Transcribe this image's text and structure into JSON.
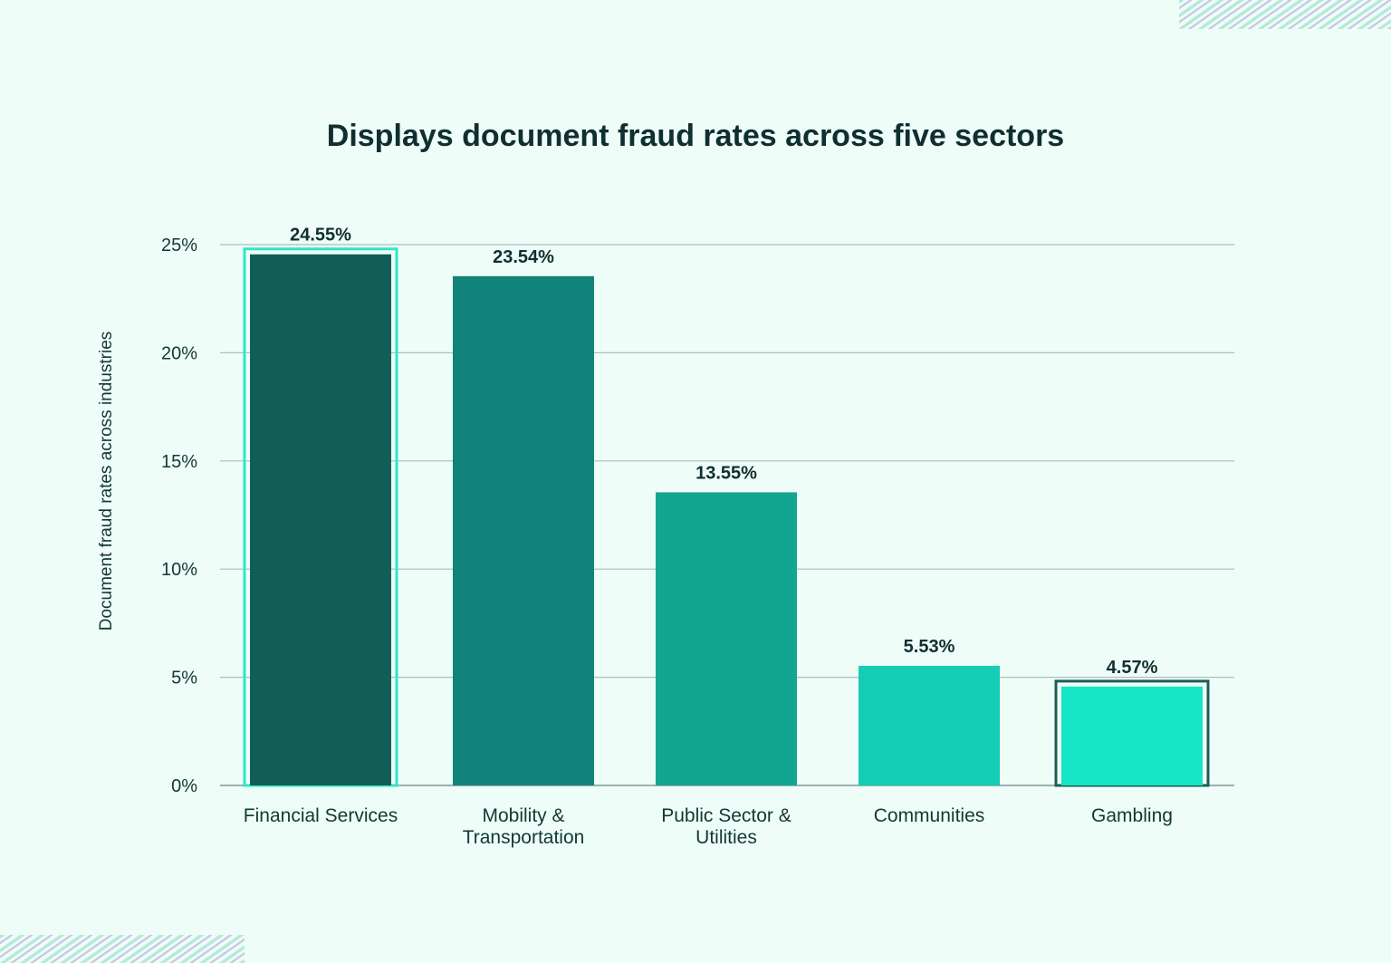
{
  "chart_data": {
    "type": "bar",
    "title": "Displays document fraud rates across five sectors",
    "ylabel": "Document fraud rates across industries",
    "xlabel": "",
    "ylim": [
      0,
      25
    ],
    "yticks": [
      {
        "value": 0,
        "label": "0%"
      },
      {
        "value": 5,
        "label": "5%"
      },
      {
        "value": 10,
        "label": "10%"
      },
      {
        "value": 15,
        "label": "15%"
      },
      {
        "value": 20,
        "label": "20%"
      },
      {
        "value": 25,
        "label": "25%"
      }
    ],
    "grid": true,
    "categories": [
      [
        "Financial Services"
      ],
      [
        "Mobility &",
        "Transportation"
      ],
      [
        "Public Sector &",
        "Utilities"
      ],
      [
        "Communities"
      ],
      [
        "Gambling"
      ]
    ],
    "values": [
      24.55,
      23.54,
      13.55,
      5.53,
      4.57
    ],
    "value_labels": [
      "24.55%",
      "23.54%",
      "13.55%",
      "5.53%",
      "4.57%"
    ],
    "bar_colors": [
      "#125e57",
      "#12837a",
      "#14a591",
      "#14cdb4",
      "#16e6c8"
    ],
    "highlight_outline_colors": [
      "#2ee6c8",
      null,
      null,
      null,
      "#1f5c57"
    ]
  }
}
